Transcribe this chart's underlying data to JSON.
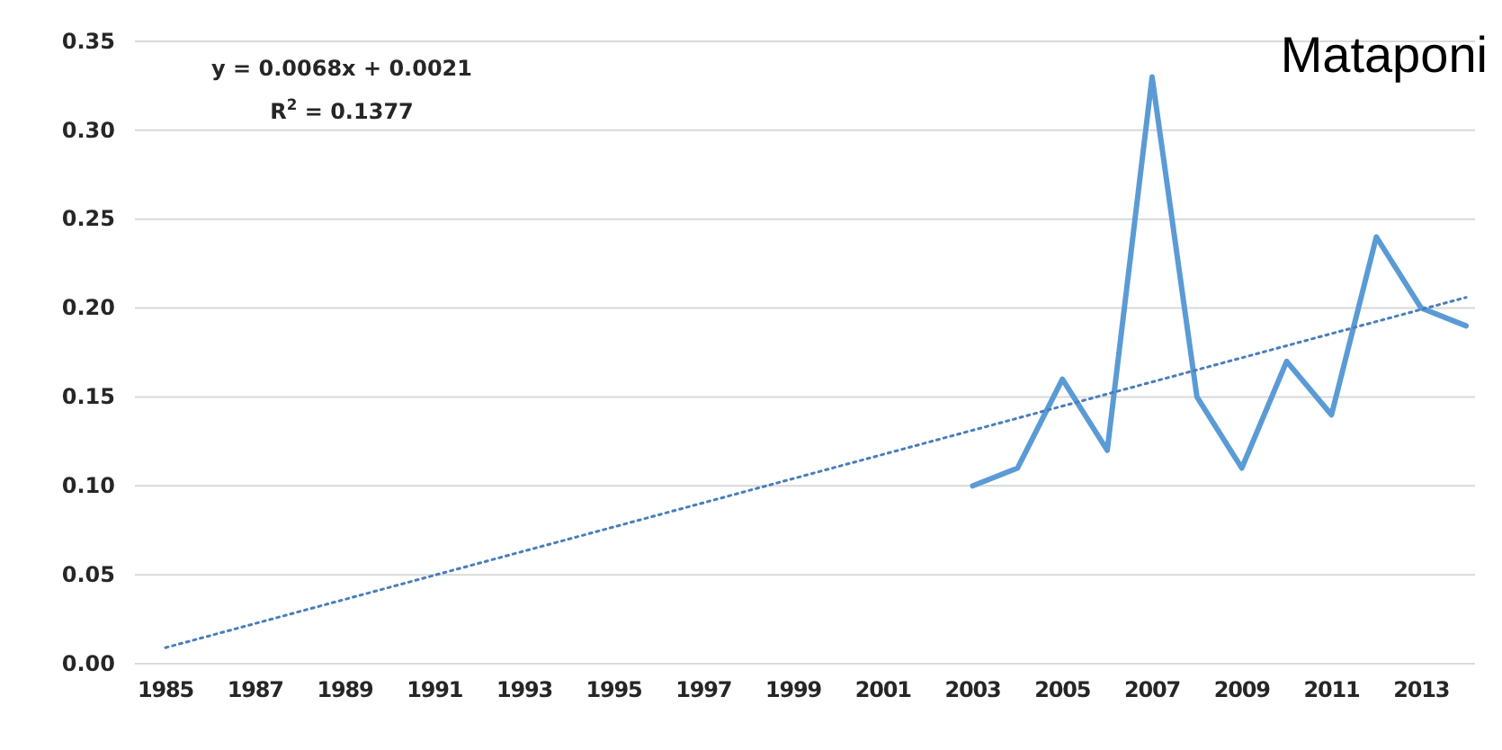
{
  "chart_data": {
    "type": "line",
    "title": "Mataponi",
    "categories": [
      "1985",
      null,
      "1987",
      null,
      "1989",
      null,
      "1991",
      null,
      "1993",
      null,
      "1995",
      null,
      "1997",
      null,
      "1999",
      null,
      "2001",
      null,
      "2003",
      null,
      "2005",
      null,
      "2007",
      null,
      "2009",
      null,
      "2011",
      null,
      "2013",
      null
    ],
    "series": [
      {
        "color": "#5b9bd5",
        "values": [
          null,
          null,
          null,
          null,
          null,
          null,
          null,
          null,
          null,
          null,
          null,
          null,
          null,
          null,
          null,
          null,
          null,
          null,
          0.1,
          0.11,
          0.16,
          0.12,
          0.33,
          0.15,
          0.11,
          0.17,
          0.14,
          0.24,
          0.2,
          0.19
        ]
      },
      {
        "color": "#4a7ebb",
        "line_style": "dotted",
        "values": [
          0.009,
          null,
          null,
          null,
          null,
          null,
          null,
          null,
          null,
          null,
          null,
          null,
          null,
          null,
          null,
          null,
          null,
          null,
          null,
          null,
          null,
          null,
          null,
          null,
          null,
          null,
          null,
          null,
          null,
          0.206
        ]
      }
    ],
    "annotations": [
      "y = 0.0068x + 0.0021",
      "R$^{2}$ = 0.1377"
    ],
    "ylim": [
      0,
      0.35
    ],
    "yticks": [
      {
        "value": 0,
        "label": "0.00"
      },
      {
        "value": 0.05,
        "label": "0.05"
      },
      {
        "value": 0.1,
        "label": "0.10"
      },
      {
        "value": 0.15,
        "label": "0.15"
      },
      {
        "value": 0.2,
        "label": "0.20"
      },
      {
        "value": 0.25,
        "label": "0.25"
      },
      {
        "value": 0.3,
        "label": "0.30"
      },
      {
        "value": 0.35,
        "label": "0.35"
      }
    ],
    "grid": "y",
    "marker": "none",
    "line_style": "solid"
  }
}
